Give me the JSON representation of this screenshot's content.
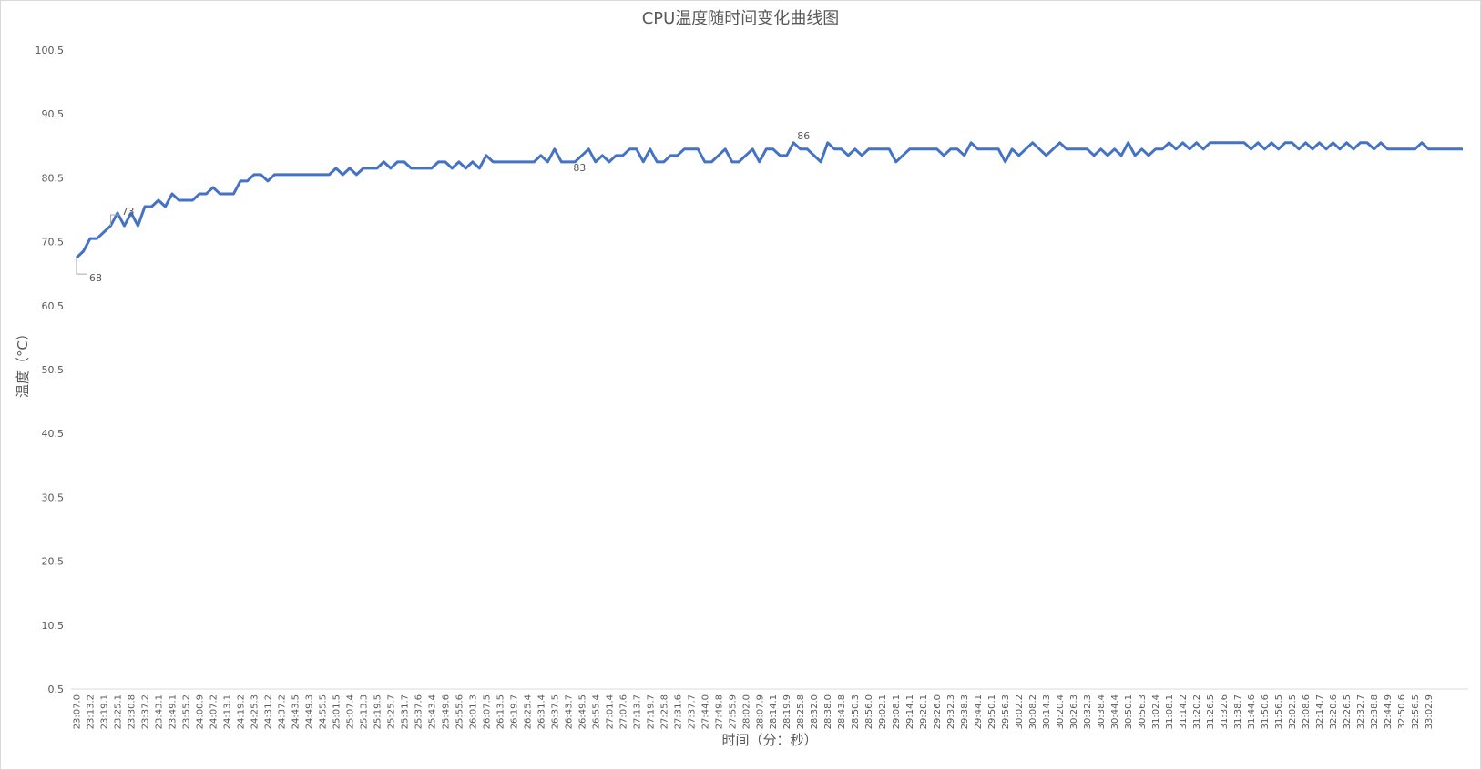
{
  "chart_data": {
    "type": "line",
    "title": "CPU温度随时间变化曲线图",
    "x_label": "时间（分：秒）",
    "y_label": "温度（°C）",
    "categories": [
      "23:07.0",
      null,
      "23:13.2",
      null,
      "23:19.1",
      null,
      "23:25.1",
      null,
      "23:30.8",
      null,
      "23:37.2",
      null,
      "23:43.1",
      null,
      "23:49.1",
      null,
      "23:55.2",
      null,
      "24:00.9",
      null,
      "24:07.2",
      null,
      "24:13.1",
      null,
      "24:19.2",
      null,
      "24:25.3",
      null,
      "24:31.2",
      null,
      "24:37.2",
      null,
      "24:43.5",
      null,
      "24:49.3",
      null,
      "24:55.5",
      null,
      "25:01.5",
      null,
      "25:07.4",
      null,
      "25:13.3",
      null,
      "25:19.5",
      null,
      "25:25.7",
      null,
      "25:31.7",
      null,
      "25:37.6",
      null,
      "25:43.4",
      null,
      "25:49.6",
      null,
      "25:55.6",
      null,
      "26:01.3",
      null,
      "26:07.5",
      null,
      "26:13.5",
      null,
      "26:19.7",
      null,
      "26:25.4",
      null,
      "26:31.4",
      null,
      "26:37.5",
      null,
      "26:43.7",
      null,
      "26:49.5",
      null,
      "26:55.4",
      null,
      "27:01.4",
      null,
      "27:07.6",
      null,
      "27:13.7",
      null,
      "27:19.7",
      null,
      "27:25.8",
      null,
      "27:31.6",
      null,
      "27:37.7",
      null,
      "27:44.0",
      null,
      "27:49.8",
      null,
      "27:55.9",
      null,
      "28:02.0",
      null,
      "28:07.9",
      null,
      "28:14.1",
      null,
      "28:19.9",
      null,
      "28:25.8",
      null,
      "28:32.0",
      null,
      "28:38.0",
      null,
      "28:43.8",
      null,
      "28:50.3",
      null,
      "28:56.0",
      null,
      "29:02.1",
      null,
      "29:08.1",
      null,
      "29:14.1",
      null,
      "29:20.1",
      null,
      "29:26.0",
      null,
      "29:32.3",
      null,
      "29:38.3",
      null,
      "29:44.1",
      null,
      "29:50.1",
      null,
      "29:56.3",
      null,
      "30:02.2",
      null,
      "30:08.2",
      null,
      "30:14.3",
      null,
      "30:20.4",
      null,
      "30:26.3",
      null,
      "30:32.3",
      null,
      "30:38.4",
      null,
      "30:44.4",
      null,
      "30:50.1",
      null,
      "30:56.3",
      null,
      "31:02.4",
      null,
      "31:08.1",
      null,
      "31:14.2",
      null,
      "31:20.2",
      null,
      "31:26.5",
      null,
      "31:32.6",
      null,
      "31:38.7",
      null,
      "31:44.6",
      null,
      "31:50.6",
      null,
      "31:56.5",
      null,
      "32:02.5",
      null,
      "32:08.6",
      null,
      "32:14.7",
      null,
      "32:20.6",
      null,
      "32:26.5",
      null,
      "32:32.7",
      null,
      "32:38.8",
      null,
      "32:44.9",
      null,
      "32:50.6",
      null,
      "32:56.5",
      null,
      "33:02.9",
      null,
      null,
      null,
      null,
      null
    ],
    "series": [
      {
        "color": "#4472c4",
        "values": [
          68,
          69,
          71,
          71,
          72,
          73,
          75,
          73,
          75,
          73,
          76,
          76,
          77,
          76,
          78,
          77,
          77,
          77,
          78,
          78,
          79,
          78,
          78,
          78,
          80,
          80,
          81,
          81,
          80,
          81,
          81,
          81,
          81,
          81,
          81,
          81,
          81,
          81,
          82,
          81,
          82,
          81,
          82,
          82,
          82,
          83,
          82,
          83,
          83,
          82,
          82,
          82,
          82,
          83,
          83,
          82,
          83,
          82,
          83,
          82,
          84,
          83,
          83,
          83,
          83,
          83,
          83,
          83,
          84,
          83,
          85,
          83,
          83,
          83,
          84,
          85,
          83,
          84,
          83,
          84,
          84,
          85,
          85,
          83,
          85,
          83,
          83,
          84,
          84,
          85,
          85,
          85,
          83,
          83,
          84,
          85,
          83,
          83,
          84,
          85,
          83,
          85,
          85,
          84,
          84,
          86,
          85,
          85,
          84,
          83,
          86,
          85,
          85,
          84,
          85,
          84,
          85,
          85,
          85,
          85,
          83,
          84,
          85,
          85,
          85,
          85,
          85,
          84,
          85,
          85,
          84,
          86,
          85,
          85,
          85,
          85,
          83,
          85,
          84,
          85,
          86,
          85,
          84,
          85,
          86,
          85,
          85,
          85,
          85,
          84,
          85,
          84,
          85,
          84,
          86,
          84,
          85,
          84,
          85,
          85,
          86,
          85,
          86,
          85,
          86,
          85,
          86,
          86,
          86,
          86,
          86,
          86,
          85,
          86,
          85,
          86,
          85,
          86,
          86,
          85,
          86,
          85,
          86,
          85,
          86,
          85,
          86,
          85,
          86,
          86,
          85,
          86,
          85,
          85,
          85,
          85,
          85,
          86,
          85,
          85,
          85,
          85,
          85,
          85
        ],
        "labeled_points": [
          0,
          5,
          73,
          105
        ]
      }
    ],
    "ylim": [
      0.5,
      100.5
    ],
    "yticks": [
      0.5,
      10.5,
      20.5,
      30.5,
      40.5,
      50.5,
      60.5,
      70.5,
      80.5,
      90.5,
      100.5
    ],
    "grid": false
  }
}
